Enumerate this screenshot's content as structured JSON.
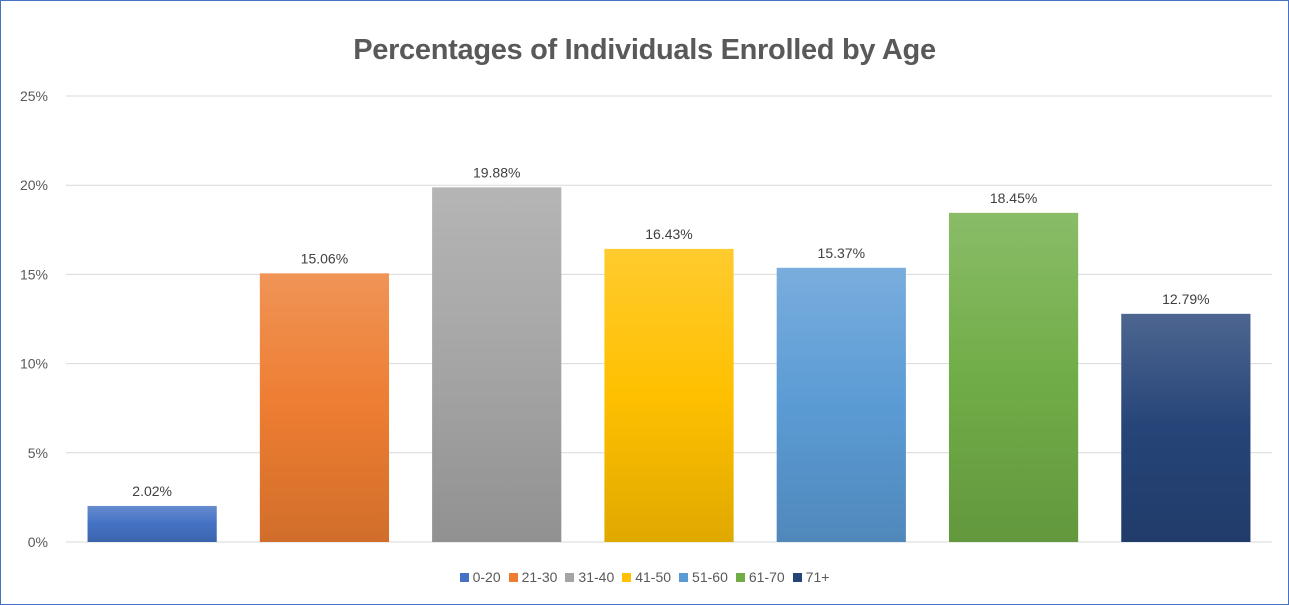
{
  "chart_data": {
    "type": "bar",
    "title": "Percentages of Individuals Enrolled by Age",
    "xlabel": "",
    "ylabel": "",
    "ylim": [
      0,
      25
    ],
    "yticks": [
      "0%",
      "5%",
      "10%",
      "15%",
      "20%",
      "25%"
    ],
    "ytick_values": [
      0,
      5,
      10,
      15,
      20,
      25
    ],
    "grid": true,
    "legend_position": "bottom",
    "categories": [
      "0-20",
      "21-30",
      "31-40",
      "41-50",
      "51-60",
      "61-70",
      "71+"
    ],
    "values": [
      2.02,
      15.06,
      19.88,
      16.43,
      15.37,
      18.45,
      12.79
    ],
    "data_labels": [
      "2.02%",
      "15.06%",
      "19.88%",
      "16.43%",
      "15.37%",
      "18.45%",
      "12.79%"
    ],
    "colors": [
      "#4472c4",
      "#ed7d31",
      "#a5a5a5",
      "#ffc000",
      "#5b9bd5",
      "#70ad47",
      "#264478"
    ]
  }
}
